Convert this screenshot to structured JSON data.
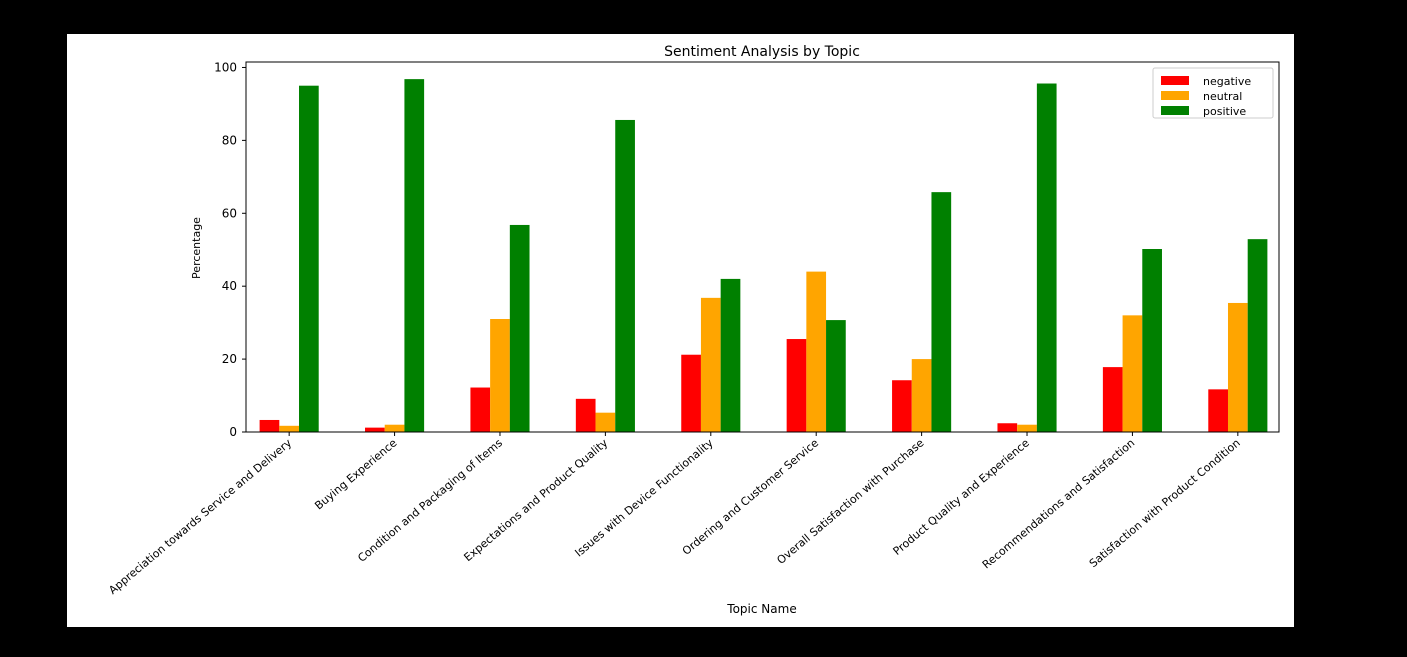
{
  "chart_data": {
    "type": "bar",
    "title": "Sentiment Analysis by Topic",
    "xlabel": "Topic Name",
    "ylabel": "Percentage",
    "ylim": [
      0,
      101.5
    ],
    "yticks": [
      0,
      20,
      40,
      60,
      80,
      100
    ],
    "grid": false,
    "legend_position": "top-right",
    "categories": [
      "Appreciation towards Service and Delivery",
      "Buying Experience",
      "Condition and Packaging of Items",
      "Expectations and Product Quality",
      "Issues with Device Functionality",
      "Ordering and Customer Service",
      "Overall Satisfaction with Purchase",
      "Product Quality and Experience",
      "Recommendations and Satisfaction",
      "Satisfaction with Product Condition"
    ],
    "series": [
      {
        "name": "negative",
        "color": "#ff0000",
        "values": [
          3.3,
          1.2,
          12.2,
          9.1,
          21.2,
          25.5,
          14.2,
          2.4,
          17.8,
          11.7
        ]
      },
      {
        "name": "neutral",
        "color": "#ffa500",
        "values": [
          1.7,
          2.0,
          31.0,
          5.3,
          36.8,
          44.0,
          20.0,
          2.0,
          32.0,
          35.4
        ]
      },
      {
        "name": "positive",
        "color": "#008000",
        "values": [
          95.0,
          96.8,
          56.8,
          85.6,
          42.0,
          30.7,
          65.8,
          95.6,
          50.2,
          52.9
        ]
      }
    ]
  }
}
